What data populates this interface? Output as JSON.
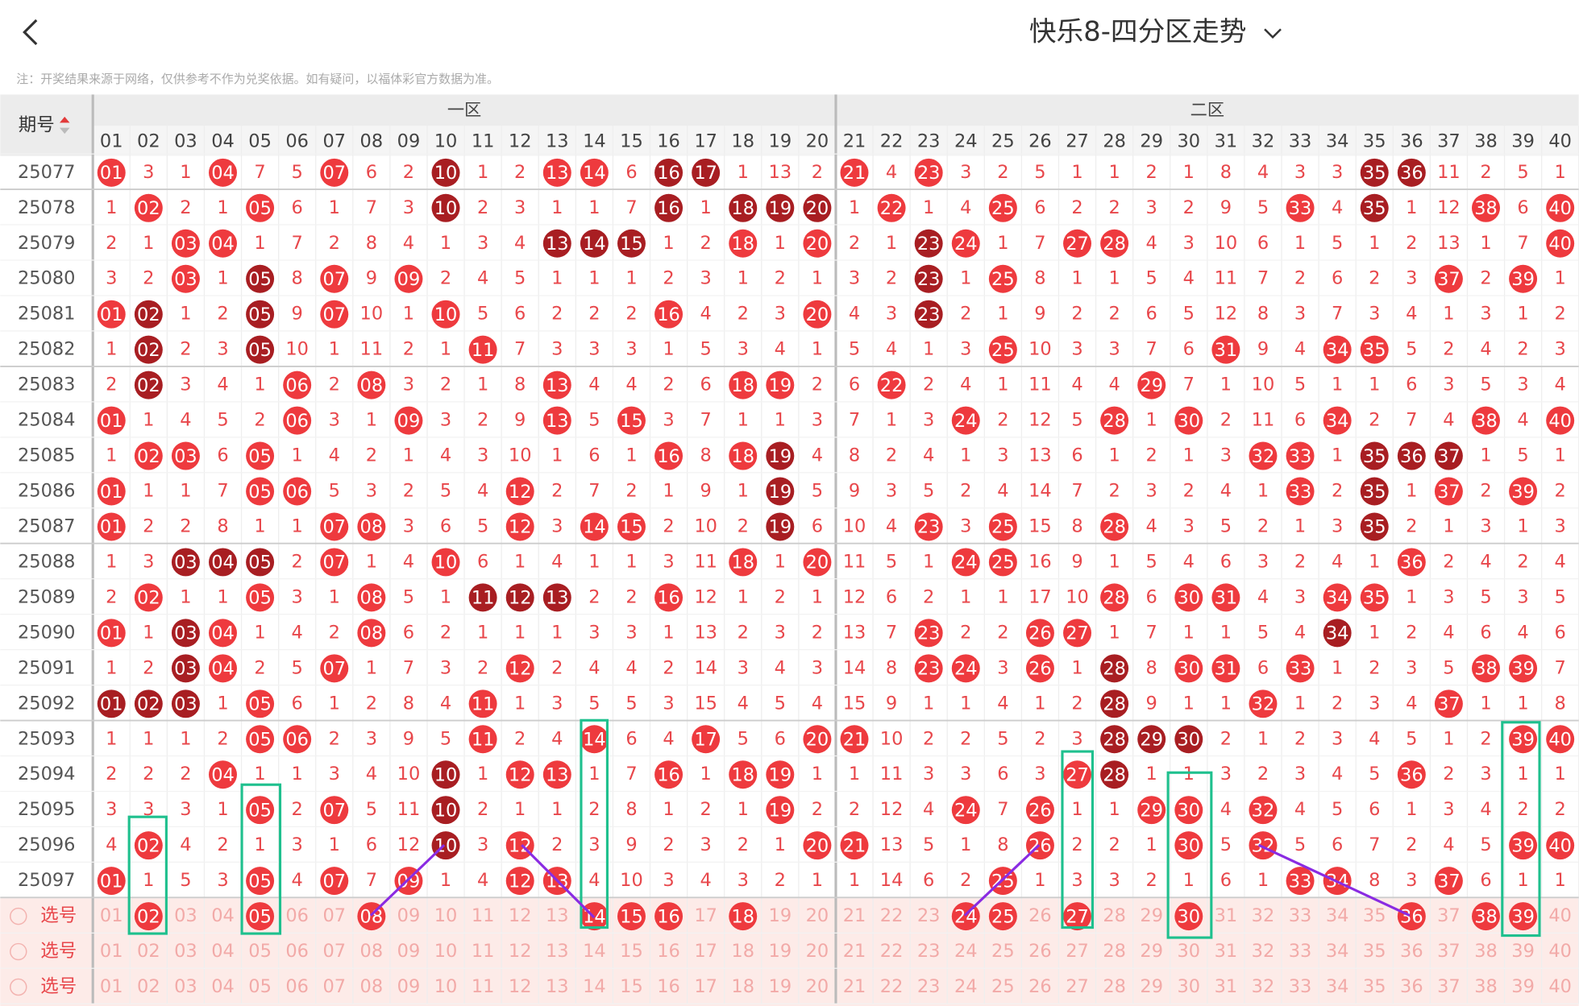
{
  "header": {
    "title": "快乐8-四分区走势",
    "note": "注：开奖结果来源于网络，仅供参考不作为兑奖依据。如有疑问，以福体彩官方数据为准。",
    "period_label": "期号",
    "zones": [
      "一区",
      "二区"
    ],
    "columns": [
      "01",
      "02",
      "03",
      "04",
      "05",
      "06",
      "07",
      "08",
      "09",
      "10",
      "11",
      "12",
      "13",
      "14",
      "15",
      "16",
      "17",
      "18",
      "19",
      "20",
      "21",
      "22",
      "23",
      "24",
      "25",
      "26",
      "27",
      "28",
      "29",
      "30",
      "31",
      "32",
      "33",
      "34",
      "35",
      "36",
      "37",
      "38",
      "39",
      "40"
    ]
  },
  "rows": [
    {
      "period": "25077",
      "cells": [
        "01",
        3,
        1,
        "04",
        7,
        5,
        "07",
        6,
        2,
        {
          "label": "10",
          "dark": true
        },
        1,
        2,
        "13",
        "14",
        6,
        {
          "label": "16",
          "dark": true
        },
        {
          "label": "17",
          "dark": true
        },
        1,
        13,
        2,
        "21",
        4,
        "23",
        3,
        2,
        5,
        1,
        1,
        2,
        1,
        8,
        4,
        3,
        3,
        {
          "label": "35",
          "dark": true
        },
        {
          "label": "36",
          "dark": true
        },
        11,
        2,
        5,
        1
      ]
    },
    {
      "period": "25078",
      "cells": [
        1,
        "02",
        2,
        1,
        "05",
        6,
        1,
        7,
        3,
        {
          "label": "10",
          "dark": true
        },
        2,
        3,
        1,
        1,
        7,
        {
          "label": "16",
          "dark": true
        },
        1,
        {
          "label": "18",
          "dark": true
        },
        {
          "label": "19",
          "dark": true
        },
        {
          "label": "20",
          "dark": true
        },
        1,
        "22",
        1,
        4,
        "25",
        6,
        2,
        2,
        3,
        2,
        9,
        5,
        "33",
        4,
        {
          "label": "35",
          "dark": true
        },
        1,
        12,
        "38",
        6,
        "40"
      ]
    },
    {
      "period": "25079",
      "cells": [
        2,
        1,
        "03",
        "04",
        1,
        7,
        2,
        8,
        4,
        1,
        3,
        4,
        {
          "label": "13",
          "dark": true
        },
        {
          "label": "14",
          "dark": true
        },
        {
          "label": "15",
          "dark": true
        },
        1,
        2,
        "18",
        1,
        "20",
        2,
        1,
        {
          "label": "23",
          "dark": true
        },
        "24",
        1,
        7,
        "27",
        "28",
        4,
        3,
        10,
        6,
        1,
        5,
        1,
        2,
        13,
        1,
        7,
        "40"
      ]
    },
    {
      "period": "25080",
      "cells": [
        3,
        2,
        "03",
        1,
        {
          "label": "05",
          "dark": true
        },
        8,
        "07",
        9,
        "09",
        2,
        4,
        5,
        1,
        1,
        1,
        2,
        3,
        1,
        2,
        1,
        3,
        2,
        {
          "label": "23",
          "dark": true
        },
        1,
        "25",
        8,
        1,
        1,
        5,
        4,
        11,
        7,
        2,
        6,
        2,
        3,
        "37",
        2,
        "39",
        1
      ]
    },
    {
      "period": "25081",
      "cells": [
        "01",
        {
          "label": "02",
          "dark": true
        },
        1,
        2,
        {
          "label": "05",
          "dark": true
        },
        9,
        "07",
        10,
        1,
        "10",
        5,
        6,
        2,
        2,
        2,
        "16",
        4,
        2,
        3,
        "20",
        4,
        3,
        {
          "label": "23",
          "dark": true
        },
        2,
        1,
        9,
        2,
        2,
        6,
        5,
        12,
        8,
        3,
        7,
        3,
        4,
        1,
        3,
        1,
        2
      ]
    },
    {
      "period": "25082",
      "cells": [
        1,
        {
          "label": "02",
          "dark": true
        },
        2,
        3,
        {
          "label": "05",
          "dark": true
        },
        10,
        1,
        11,
        2,
        1,
        "11",
        7,
        3,
        3,
        3,
        1,
        5,
        3,
        4,
        1,
        5,
        4,
        1,
        3,
        "25",
        10,
        3,
        3,
        7,
        6,
        "31",
        9,
        4,
        "34",
        "35",
        5,
        2,
        4,
        2,
        3
      ]
    },
    {
      "period": "25083",
      "cells": [
        2,
        {
          "label": "02",
          "dark": true
        },
        3,
        4,
        1,
        "06",
        2,
        "08",
        3,
        2,
        1,
        8,
        "13",
        4,
        4,
        2,
        6,
        "18",
        "19",
        2,
        6,
        "22",
        2,
        4,
        1,
        11,
        4,
        4,
        "29",
        7,
        1,
        10,
        5,
        1,
        1,
        6,
        3,
        5,
        3,
        4
      ]
    },
    {
      "period": "25084",
      "cells": [
        "01",
        1,
        4,
        5,
        2,
        "06",
        3,
        1,
        "09",
        3,
        2,
        9,
        "13",
        5,
        "15",
        3,
        7,
        1,
        1,
        3,
        7,
        1,
        3,
        "24",
        2,
        12,
        5,
        "28",
        1,
        "30",
        2,
        11,
        6,
        "34",
        2,
        7,
        4,
        "38",
        4,
        "40"
      ]
    },
    {
      "period": "25085",
      "cells": [
        1,
        "02",
        "03",
        6,
        "05",
        1,
        4,
        2,
        1,
        4,
        3,
        10,
        1,
        6,
        1,
        "16",
        8,
        "18",
        {
          "label": "19",
          "dark": true
        },
        4,
        8,
        2,
        4,
        1,
        3,
        13,
        6,
        1,
        2,
        1,
        3,
        "32",
        "33",
        1,
        {
          "label": "35",
          "dark": true
        },
        {
          "label": "36",
          "dark": true
        },
        {
          "label": "37",
          "dark": true
        },
        1,
        5,
        1
      ]
    },
    {
      "period": "25086",
      "cells": [
        "01",
        1,
        1,
        7,
        "05",
        "06",
        5,
        3,
        2,
        5,
        4,
        "12",
        2,
        7,
        2,
        1,
        9,
        1,
        {
          "label": "19",
          "dark": true
        },
        5,
        9,
        3,
        5,
        2,
        4,
        14,
        7,
        2,
        3,
        2,
        4,
        1,
        "33",
        2,
        {
          "label": "35",
          "dark": true
        },
        1,
        "37",
        2,
        "39",
        2
      ]
    },
    {
      "period": "25087",
      "cells": [
        "01",
        2,
        2,
        8,
        1,
        1,
        "07",
        "08",
        3,
        6,
        5,
        "12",
        3,
        "14",
        "15",
        2,
        10,
        2,
        {
          "label": "19",
          "dark": true
        },
        6,
        10,
        4,
        "23",
        3,
        "25",
        15,
        8,
        "28",
        4,
        3,
        5,
        2,
        1,
        3,
        {
          "label": "35",
          "dark": true
        },
        2,
        1,
        3,
        1,
        3
      ]
    },
    {
      "period": "25088",
      "cells": [
        1,
        3,
        {
          "label": "03",
          "dark": true
        },
        {
          "label": "04",
          "dark": true
        },
        {
          "label": "05",
          "dark": true
        },
        2,
        "07",
        1,
        4,
        "10",
        6,
        1,
        4,
        1,
        1,
        3,
        11,
        "18",
        1,
        "20",
        11,
        5,
        1,
        "24",
        "25",
        16,
        9,
        1,
        5,
        4,
        6,
        3,
        2,
        4,
        1,
        "36",
        2,
        4,
        2,
        4
      ]
    },
    {
      "period": "25089",
      "cells": [
        2,
        "02",
        1,
        1,
        "05",
        3,
        1,
        "08",
        5,
        1,
        {
          "label": "11",
          "dark": true
        },
        {
          "label": "12",
          "dark": true
        },
        {
          "label": "13",
          "dark": true
        },
        2,
        2,
        "16",
        12,
        1,
        2,
        1,
        12,
        6,
        2,
        1,
        1,
        17,
        10,
        "28",
        6,
        "30",
        "31",
        4,
        3,
        "34",
        "35",
        1,
        3,
        5,
        3,
        5
      ]
    },
    {
      "period": "25090",
      "cells": [
        "01",
        1,
        {
          "label": "03",
          "dark": true
        },
        "04",
        1,
        4,
        2,
        "08",
        6,
        2,
        1,
        1,
        1,
        3,
        3,
        1,
        13,
        2,
        3,
        2,
        13,
        7,
        "23",
        2,
        2,
        "26",
        "27",
        1,
        7,
        1,
        1,
        5,
        4,
        {
          "label": "34",
          "dark": true
        },
        1,
        2,
        4,
        6,
        4,
        6
      ]
    },
    {
      "period": "25091",
      "cells": [
        1,
        2,
        {
          "label": "03",
          "dark": true
        },
        "04",
        2,
        5,
        "07",
        1,
        7,
        3,
        2,
        "12",
        2,
        4,
        4,
        2,
        14,
        3,
        4,
        3,
        14,
        8,
        "23",
        "24",
        3,
        "26",
        1,
        {
          "label": "28",
          "dark": true
        },
        8,
        "30",
        "31",
        6,
        "33",
        1,
        2,
        3,
        5,
        "38",
        "39",
        7
      ]
    },
    {
      "period": "25092",
      "cells": [
        {
          "label": "01",
          "dark": true
        },
        {
          "label": "02",
          "dark": true
        },
        {
          "label": "03",
          "dark": true
        },
        1,
        "05",
        6,
        1,
        2,
        8,
        4,
        "11",
        1,
        3,
        5,
        5,
        3,
        15,
        4,
        5,
        4,
        15,
        9,
        1,
        1,
        4,
        1,
        2,
        {
          "label": "28",
          "dark": true
        },
        9,
        1,
        1,
        "32",
        1,
        2,
        3,
        4,
        "37",
        1,
        1,
        8
      ]
    },
    {
      "period": "25093",
      "cells": [
        1,
        1,
        1,
        2,
        "05",
        "06",
        2,
        3,
        9,
        5,
        "11",
        2,
        4,
        "14",
        6,
        4,
        "17",
        5,
        6,
        "20",
        "21",
        10,
        2,
        2,
        5,
        2,
        3,
        {
          "label": "28",
          "dark": true
        },
        {
          "label": "29",
          "dark": true
        },
        {
          "label": "30",
          "dark": true
        },
        2,
        1,
        2,
        3,
        4,
        5,
        1,
        2,
        "39",
        "40"
      ]
    },
    {
      "period": "25094",
      "cells": [
        2,
        2,
        2,
        "04",
        1,
        1,
        3,
        4,
        10,
        {
          "label": "10",
          "dark": true
        },
        1,
        "12",
        "13",
        1,
        7,
        "16",
        1,
        "18",
        "19",
        1,
        1,
        11,
        3,
        3,
        6,
        3,
        "27",
        {
          "label": "28",
          "dark": true
        },
        1,
        1,
        3,
        2,
        3,
        4,
        5,
        "36",
        2,
        3,
        1,
        1
      ]
    },
    {
      "period": "25095",
      "cells": [
        3,
        3,
        3,
        1,
        "05",
        2,
        "07",
        5,
        11,
        {
          "label": "10",
          "dark": true
        },
        2,
        1,
        1,
        2,
        8,
        1,
        2,
        1,
        "19",
        2,
        2,
        12,
        4,
        "24",
        7,
        "26",
        1,
        1,
        "29",
        "30",
        4,
        "32",
        4,
        5,
        6,
        1,
        3,
        4,
        2,
        2
      ]
    },
    {
      "period": "25096",
      "cells": [
        4,
        "02",
        4,
        2,
        1,
        3,
        1,
        6,
        12,
        {
          "label": "10",
          "dark": true
        },
        3,
        "12",
        2,
        3,
        9,
        2,
        3,
        2,
        1,
        "20",
        "21",
        13,
        5,
        1,
        8,
        "26",
        2,
        2,
        1,
        "30",
        5,
        "32",
        5,
        6,
        7,
        2,
        4,
        5,
        "39",
        "40"
      ]
    },
    {
      "period": "25097",
      "cells": [
        "01",
        1,
        5,
        3,
        "05",
        4,
        "07",
        7,
        "09",
        1,
        4,
        "12",
        "13",
        4,
        10,
        3,
        4,
        3,
        2,
        1,
        1,
        14,
        6,
        2,
        "25",
        1,
        3,
        3,
        2,
        1,
        6,
        1,
        "33",
        "34",
        8,
        3,
        "37",
        6,
        1,
        1
      ]
    }
  ],
  "pick_rows": [
    {
      "label": "选号",
      "picked": [
        "02",
        "05",
        "08",
        "14",
        "15",
        "16",
        "18",
        "24",
        "25",
        "27",
        "30",
        "36",
        "38",
        "39"
      ]
    },
    {
      "label": "选号",
      "picked": []
    },
    {
      "label": "选号",
      "picked": []
    }
  ]
}
